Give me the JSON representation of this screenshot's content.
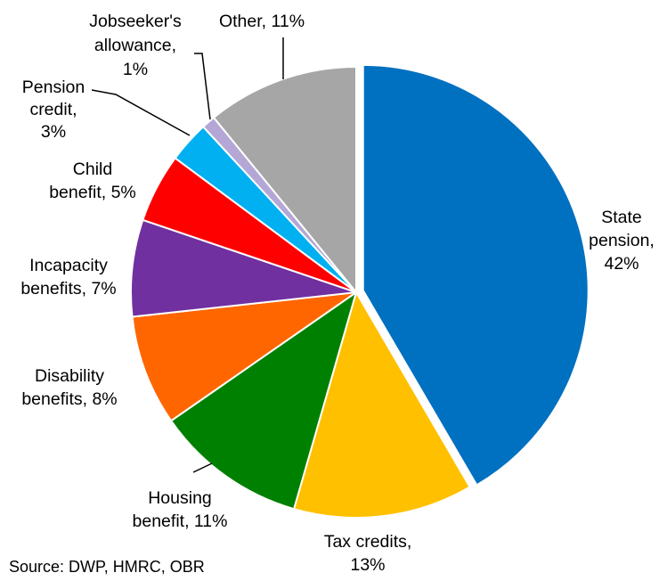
{
  "chart_data": {
    "type": "pie",
    "title": "",
    "slices": [
      {
        "label": "State pension",
        "value": 42,
        "color": "#0070C0",
        "label_lines": [
          "State",
          "pension,",
          "42%"
        ],
        "exploded": true
      },
      {
        "label": "Tax credits",
        "value": 13,
        "color": "#FFC000",
        "label_lines": [
          "Tax credits,",
          "13%"
        ]
      },
      {
        "label": "Housing benefit",
        "value": 11,
        "color": "#008000",
        "label_lines": [
          "Housing",
          "benefit, 11%"
        ]
      },
      {
        "label": "Disability benefits",
        "value": 8,
        "color": "#FF6600",
        "label_lines": [
          "Disability",
          "benefits, 8%"
        ]
      },
      {
        "label": "Incapacity benefits",
        "value": 7,
        "color": "#7030A0",
        "label_lines": [
          "Incapacity",
          "benefits, 7%"
        ]
      },
      {
        "label": "Child benefit",
        "value": 5,
        "color": "#FF0000",
        "label_lines": [
          "Child",
          "benefit, 5%"
        ]
      },
      {
        "label": "Pension credit",
        "value": 3,
        "color": "#00B0F0",
        "label_lines": [
          "Pension",
          "credit,",
          "3%"
        ]
      },
      {
        "label": "Jobseeker's allowance",
        "value": 1,
        "color": "#B4A7D6",
        "label_lines": [
          "Jobseeker's",
          "allowance,",
          "1%"
        ]
      },
      {
        "label": "Other",
        "value": 11,
        "color": "#A6A6A6",
        "label_lines": [
          "Other, 11%"
        ]
      }
    ]
  },
  "source_note": "Source: DWP, HMRC, OBR"
}
